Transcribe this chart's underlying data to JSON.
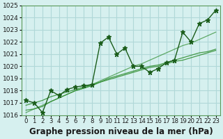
{
  "title": "Graphe pression niveau de la mer (hPa)",
  "x_labels": [
    "0",
    "1",
    "2",
    "3",
    "4",
    "5",
    "6",
    "7",
    "8",
    "9",
    "10",
    "11",
    "12",
    "13",
    "14",
    "15",
    "16",
    "17",
    "18",
    "19",
    "20",
    "21",
    "22",
    "23"
  ],
  "hours": [
    0,
    1,
    2,
    3,
    4,
    5,
    6,
    7,
    8,
    9,
    10,
    11,
    12,
    13,
    14,
    15,
    16,
    17,
    18,
    19,
    20,
    21,
    22,
    23
  ],
  "pressure": [
    1017.2,
    1017.0,
    1016.2,
    1018.0,
    1017.6,
    1018.1,
    1018.3,
    1018.4,
    1018.5,
    1021.9,
    1022.4,
    1021.0,
    1021.5,
    1020.0,
    1020.0,
    1019.5,
    1019.8,
    1020.3,
    1020.5,
    1022.8,
    1022.0,
    1023.5,
    1023.8,
    1024.6
  ],
  "smooth_line1": [
    1016.4,
    1016.5,
    1016.7,
    1017.1,
    1017.4,
    1017.7,
    1018.0,
    1018.2,
    1018.4,
    1018.7,
    1019.0,
    1019.2,
    1019.4,
    1019.6,
    1019.8,
    1020.0,
    1020.1,
    1020.3,
    1020.5,
    1020.7,
    1020.9,
    1021.1,
    1021.2,
    1021.4
  ],
  "smooth_line2": [
    1016.8,
    1017.0,
    1017.2,
    1017.5,
    1017.7,
    1017.9,
    1018.1,
    1018.3,
    1018.5,
    1018.7,
    1018.9,
    1019.1,
    1019.3,
    1019.5,
    1019.7,
    1019.9,
    1020.0,
    1020.2,
    1020.4,
    1020.5,
    1020.7,
    1020.9,
    1021.1,
    1021.3
  ],
  "linear_line": [
    1016.2,
    1016.5,
    1016.8,
    1017.1,
    1017.4,
    1017.7,
    1018.0,
    1018.2,
    1018.5,
    1018.8,
    1019.1,
    1019.4,
    1019.7,
    1020.0,
    1020.2,
    1020.5,
    1020.8,
    1021.1,
    1021.4,
    1021.7,
    1021.9,
    1022.2,
    1022.5,
    1022.8
  ],
  "ylim_min": 1016.0,
  "ylim_max": 1025.0,
  "ytick_step": 1,
  "bg_color": "#d6f0ef",
  "grid_color": "#b0d8d8",
  "line_color_main": "#1a5c1a",
  "line_color_smooth": "#2d8c2d",
  "marker": "*",
  "marker_size": 5,
  "title_fontsize": 8.5,
  "tick_fontsize": 6.5
}
